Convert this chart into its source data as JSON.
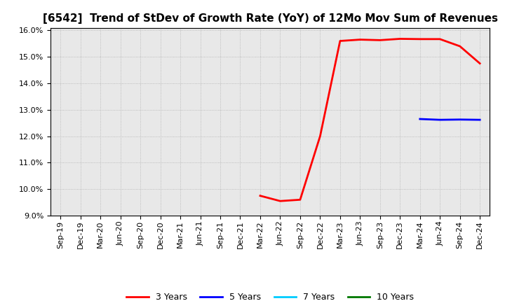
{
  "title": "[6542]  Trend of StDev of Growth Rate (YoY) of 12Mo Mov Sum of Revenues",
  "ylim": [
    0.09,
    0.161
  ],
  "yticks": [
    0.09,
    0.1,
    0.11,
    0.12,
    0.13,
    0.14,
    0.15,
    0.16
  ],
  "background_color": "#ffffff",
  "plot_bg_color": "#e8e8e8",
  "grid_color": "#aaaaaa",
  "series": {
    "3yr": {
      "color": "#ff0000",
      "label": "3 Years",
      "x": [
        "Mar-22",
        "Jun-22",
        "Sep-22",
        "Dec-22",
        "Mar-23",
        "Jun-23",
        "Sep-23",
        "Dec-23",
        "Mar-24",
        "Jun-24",
        "Sep-24",
        "Dec-24"
      ],
      "y": [
        0.0975,
        0.0955,
        0.096,
        0.12,
        0.156,
        0.1565,
        0.1563,
        0.1568,
        0.1567,
        0.1567,
        0.154,
        0.1475
      ]
    },
    "5yr": {
      "color": "#0000ff",
      "label": "5 Years",
      "x": [
        "Mar-24",
        "Jun-24",
        "Sep-24",
        "Dec-24"
      ],
      "y": [
        0.1265,
        0.1262,
        0.1263,
        0.1262
      ]
    },
    "7yr": {
      "color": "#00ccff",
      "label": "7 Years",
      "x": [],
      "y": []
    },
    "10yr": {
      "color": "#007700",
      "label": "10 Years",
      "x": [],
      "y": []
    }
  },
  "xtick_labels": [
    "Sep-19",
    "Dec-19",
    "Mar-20",
    "Jun-20",
    "Sep-20",
    "Dec-20",
    "Mar-21",
    "Jun-21",
    "Sep-21",
    "Dec-21",
    "Mar-22",
    "Jun-22",
    "Sep-22",
    "Dec-22",
    "Mar-23",
    "Jun-23",
    "Sep-23",
    "Dec-23",
    "Mar-24",
    "Jun-24",
    "Sep-24",
    "Dec-24"
  ],
  "legend_entries": [
    {
      "label": "3 Years",
      "color": "#ff0000"
    },
    {
      "label": "5 Years",
      "color": "#0000ff"
    },
    {
      "label": "7 Years",
      "color": "#00ccff"
    },
    {
      "label": "10 Years",
      "color": "#007700"
    }
  ],
  "title_fontsize": 11,
  "tick_fontsize": 8,
  "legend_fontsize": 9
}
